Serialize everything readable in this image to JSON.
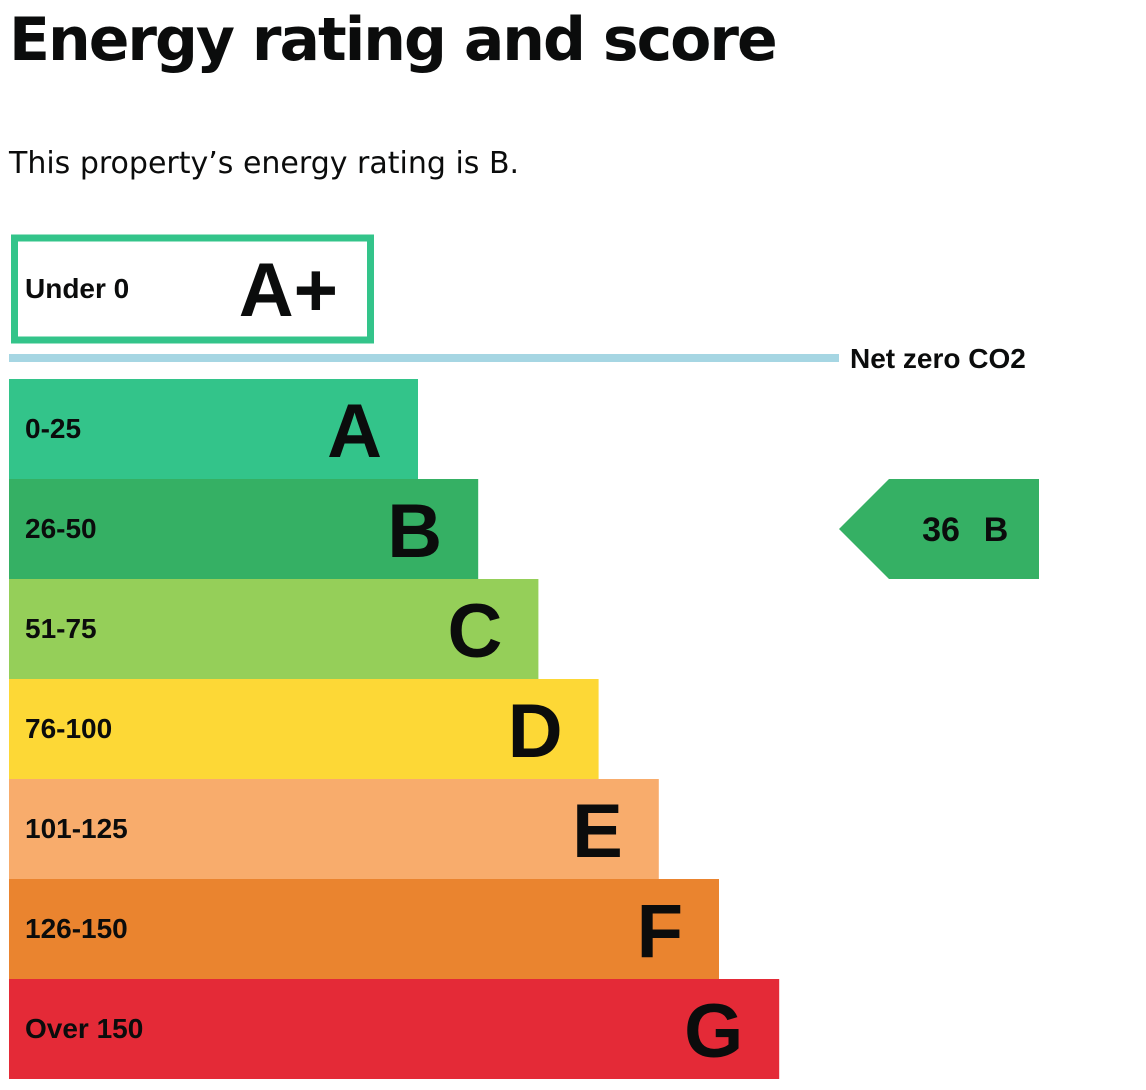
{
  "page": {
    "title": "Energy rating and score",
    "summary": "This property’s energy rating is B."
  },
  "chart_data": {
    "type": "bar",
    "title": "",
    "bands": [
      {
        "range": "Under 0",
        "letter": "A+",
        "color": "#33c48a",
        "outlined": true
      },
      {
        "range": "0-25",
        "letter": "A",
        "color": "#33c48a"
      },
      {
        "range": "26-50",
        "letter": "B",
        "color": "#35b064"
      },
      {
        "range": "51-75",
        "letter": "C",
        "color": "#95cf59"
      },
      {
        "range": "76-100",
        "letter": "D",
        "color": "#fdd836"
      },
      {
        "range": "101-125",
        "letter": "E",
        "color": "#f8ac6c"
      },
      {
        "range": "126-150",
        "letter": "F",
        "color": "#ea842f"
      },
      {
        "range": "Over 150",
        "letter": "G",
        "color": "#e42a37"
      }
    ],
    "net_zero_label": "Net zero CO2",
    "net_zero_line_color": "#a6d6e3",
    "current": {
      "score": "36",
      "rating": "B",
      "color": "#35b064"
    }
  }
}
